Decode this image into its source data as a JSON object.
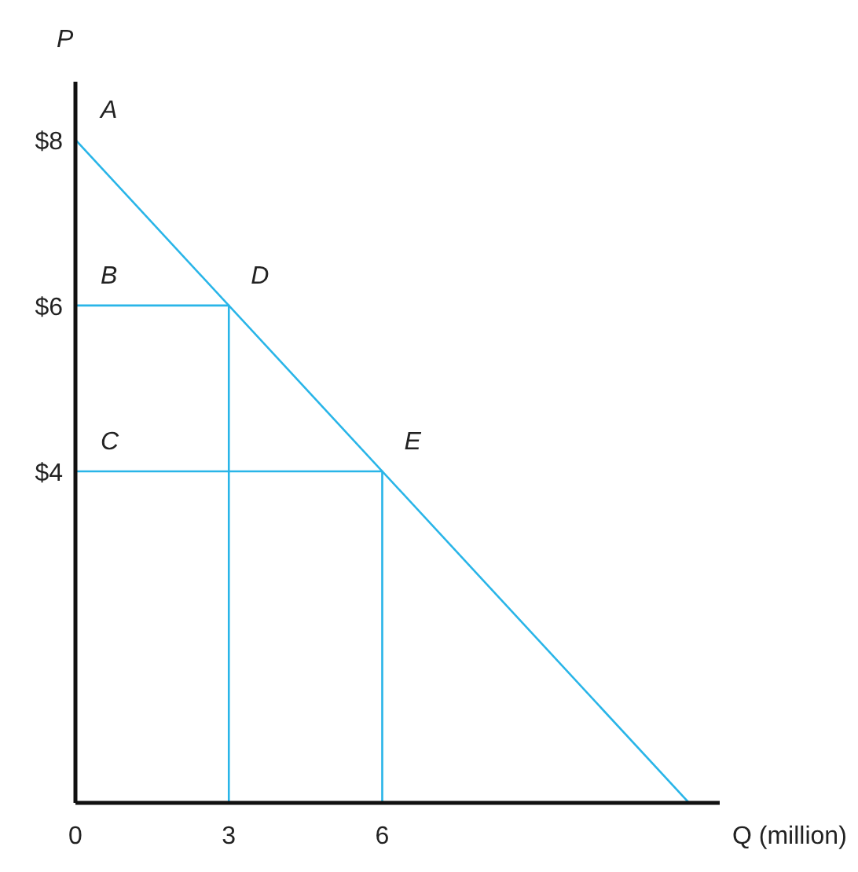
{
  "chart_data": {
    "type": "line",
    "xlabel": "Q (million)",
    "ylabel": "P",
    "xlim": [
      0,
      12.6
    ],
    "ylim": [
      0,
      8.7
    ],
    "xticks": [
      0,
      3,
      6
    ],
    "yticks": [
      {
        "value": 4,
        "label": "$4"
      },
      {
        "value": 6,
        "label": "$6"
      },
      {
        "value": 8,
        "label": "$8"
      }
    ],
    "grid": false,
    "marker": "none",
    "line_style": "solid",
    "series": [
      {
        "color": "#29b5e8",
        "x": [
          0,
          12
        ],
        "values": [
          8,
          0
        ]
      },
      {
        "color": "#29b5e8",
        "x": [
          0,
          3,
          3
        ],
        "values": [
          6,
          6,
          0
        ]
      },
      {
        "color": "#29b5e8",
        "x": [
          0,
          6,
          6
        ],
        "values": [
          4,
          4,
          0
        ]
      }
    ],
    "annotations": [
      {
        "text": "A",
        "x": 0,
        "y": 8
      },
      {
        "text": "B",
        "x": 0,
        "y": 6
      },
      {
        "text": "C",
        "x": 0,
        "y": 4
      },
      {
        "text": "D",
        "x": 3,
        "y": 6
      },
      {
        "text": "E",
        "x": 6,
        "y": 4
      }
    ]
  }
}
